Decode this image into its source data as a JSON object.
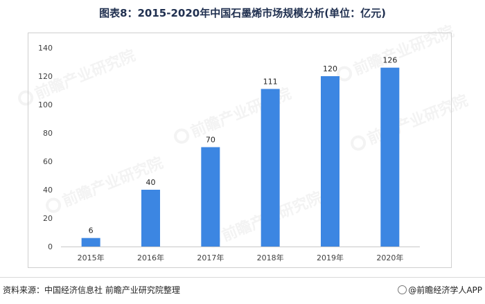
{
  "title": "图表8：2015-2020年中国石墨烯市场规模分析(单位：亿元)",
  "source": "资料来源：中国经济信息社 前瞻产业研究院整理",
  "brand": "@前瞻经济学人APP",
  "watermark": "前瞻产业研究院",
  "chart_data": {
    "type": "bar",
    "title": "图表8：2015-2020年中国石墨烯市场规模分析(单位：亿元)",
    "categories": [
      "2015年",
      "2016年",
      "2017年",
      "2018年",
      "2019年",
      "2020年"
    ],
    "values": [
      6,
      40,
      70,
      111,
      120,
      126
    ],
    "ylim": [
      0,
      140
    ],
    "yticks": [
      0,
      20,
      40,
      60,
      80,
      100,
      120,
      140
    ],
    "xlabel": "",
    "ylabel": "",
    "grid": false,
    "legend": "none",
    "bar_color": "#3c86e2",
    "data_labels": true
  }
}
